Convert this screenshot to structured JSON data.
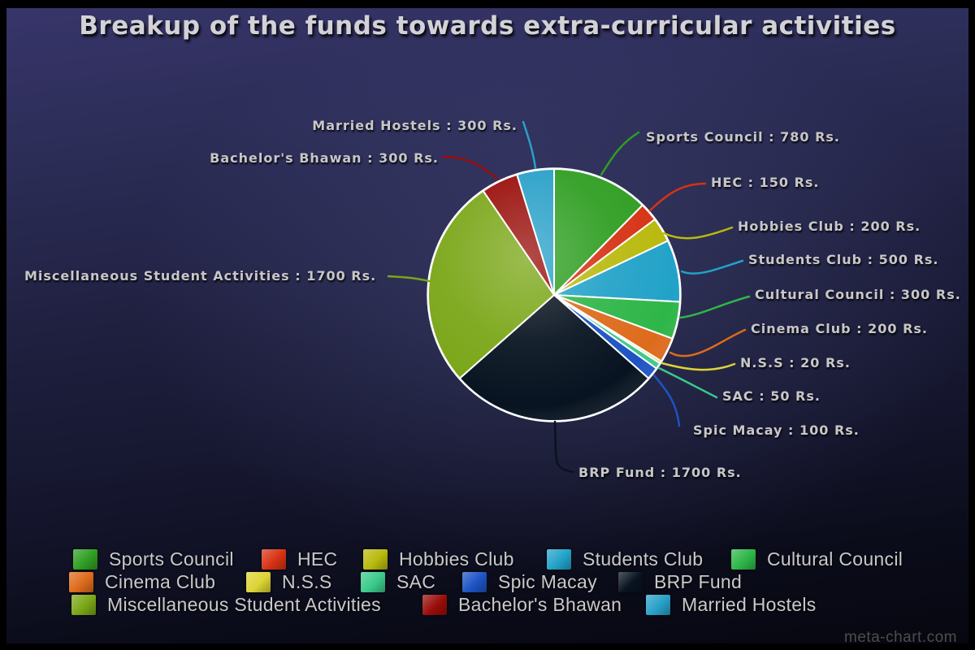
{
  "title": "Breakup of the funds towards extra-curricular activities",
  "watermark": "meta-chart.com",
  "chart_data": {
    "type": "pie",
    "title": "Breakup of the funds towards extra-curricular activities",
    "unit": "Rs.",
    "total": 6300,
    "start_angle_deg": -90,
    "direction": "clockwise",
    "legend_position": "bottom",
    "categories": [
      "Sports Council",
      "HEC",
      "Hobbies Club",
      "Students Club",
      "Cultural Council",
      "Cinema Club",
      "N.S.S",
      "SAC",
      "Spic Macay",
      "BRP Fund",
      "Miscellaneous Student Activities",
      "Bachelor's Bhawan",
      "Married Hostels"
    ],
    "values": [
      780,
      150,
      200,
      500,
      300,
      200,
      20,
      50,
      100,
      1700,
      1700,
      300,
      300
    ],
    "colors": [
      "#2f9e22",
      "#d63214",
      "#b9b90e",
      "#22a2c8",
      "#2eb648",
      "#dd6b1c",
      "#ddd435",
      "#3bca8b",
      "#1d53c4",
      "#071320",
      "#7aa617",
      "#990d09",
      "#28a0c8"
    ],
    "slice_labels": [
      "Sports Council : 780 Rs.",
      "HEC : 150 Rs.",
      "Hobbies Club : 200 Rs.",
      "Students Club : 500 Rs.",
      "Cultural Council : 300 Rs.",
      "Cinema Club : 200 Rs.",
      "N.S.S : 20 Rs.",
      "SAC : 50 Rs.",
      "Spic Macay : 100 Rs.",
      "BRP Fund : 1700 Rs.",
      "Miscellaneous Student Activities : 1700 Rs.",
      "Bachelor's Bhawan : 300 Rs.",
      "Married Hostels : 300 Rs."
    ]
  }
}
